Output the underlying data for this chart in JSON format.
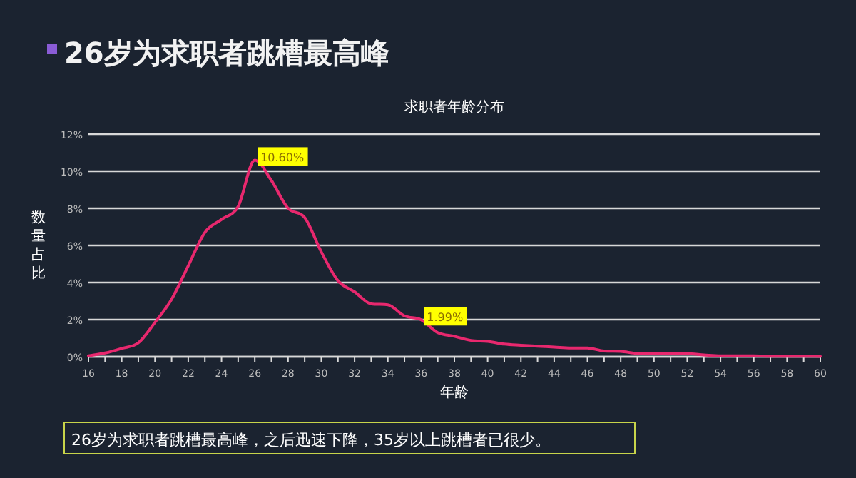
{
  "chart_data": {
    "type": "line",
    "title": "26岁为求职者跳槽最高峰",
    "subtitle": "求职者年龄分布",
    "xlabel": "年龄",
    "ylabel": "数量占比",
    "x": [
      16,
      17,
      18,
      19,
      20,
      21,
      22,
      23,
      24,
      25,
      26,
      27,
      28,
      29,
      30,
      31,
      32,
      33,
      34,
      35,
      36,
      37,
      38,
      39,
      40,
      41,
      42,
      43,
      44,
      45,
      46,
      47,
      48,
      49,
      50,
      51,
      52,
      53,
      54,
      55,
      56,
      57,
      58,
      59,
      60
    ],
    "series": [
      {
        "color": "#e8286e",
        "values": [
          0.05,
          0.2,
          0.45,
          0.75,
          1.85,
          3.1,
          4.9,
          6.7,
          7.4,
          8.1,
          10.6,
          9.5,
          8.0,
          7.5,
          5.65,
          4.1,
          3.5,
          2.85,
          2.8,
          2.2,
          1.99,
          1.3,
          1.1,
          0.88,
          0.83,
          0.68,
          0.62,
          0.57,
          0.52,
          0.47,
          0.47,
          0.31,
          0.29,
          0.18,
          0.18,
          0.16,
          0.16,
          0.1,
          0.05,
          0.05,
          0.05,
          0.03,
          0.03,
          0.03,
          0.02
        ]
      }
    ],
    "xlim": [
      16,
      60
    ],
    "xticks": [
      16,
      {
        "value": 17,
        "label": null
      },
      18,
      {
        "value": 19,
        "label": null
      },
      20,
      {
        "value": 21,
        "label": null
      },
      22,
      {
        "value": 23,
        "label": null
      },
      24,
      {
        "value": 25,
        "label": null
      },
      26,
      {
        "value": 27,
        "label": null
      },
      28,
      {
        "value": 29,
        "label": null
      },
      30,
      {
        "value": 31,
        "label": null
      },
      32,
      {
        "value": 33,
        "label": null
      },
      34,
      {
        "value": 35,
        "label": null
      },
      36,
      {
        "value": 37,
        "label": null
      },
      38,
      {
        "value": 39,
        "label": null
      },
      40,
      {
        "value": 41,
        "label": null
      },
      42,
      {
        "value": 43,
        "label": null
      },
      44,
      {
        "value": 45,
        "label": null
      },
      46,
      {
        "value": 47,
        "label": null
      },
      48,
      {
        "value": 49,
        "label": null
      },
      50,
      {
        "value": 51,
        "label": null
      },
      52,
      {
        "value": 53,
        "label": null
      },
      54,
      {
        "value": 55,
        "label": null
      },
      56,
      {
        "value": 57,
        "label": null
      },
      58,
      {
        "value": 59,
        "label": null
      },
      60
    ],
    "ylim": [
      0,
      12
    ],
    "yticks": [
      {
        "value": 0,
        "label": "0%"
      },
      {
        "value": 2,
        "label": "2%"
      },
      {
        "value": 4,
        "label": "4%"
      },
      {
        "value": 6,
        "label": "6%"
      },
      {
        "value": 8,
        "label": "8%"
      },
      {
        "value": 10,
        "label": "10%"
      },
      {
        "value": 12,
        "label": "12%"
      }
    ],
    "grid": "y",
    "marker": "none",
    "line_style": "solid",
    "annotations": [
      {
        "text": "10.60%",
        "x": 26,
        "y": 10.6
      },
      {
        "text": "1.99%",
        "x": 36,
        "y": 1.99
      },
      "26岁为求职者跳槽最高峰，之后迅速下降，35岁以上跳槽者已很少。"
    ]
  }
}
